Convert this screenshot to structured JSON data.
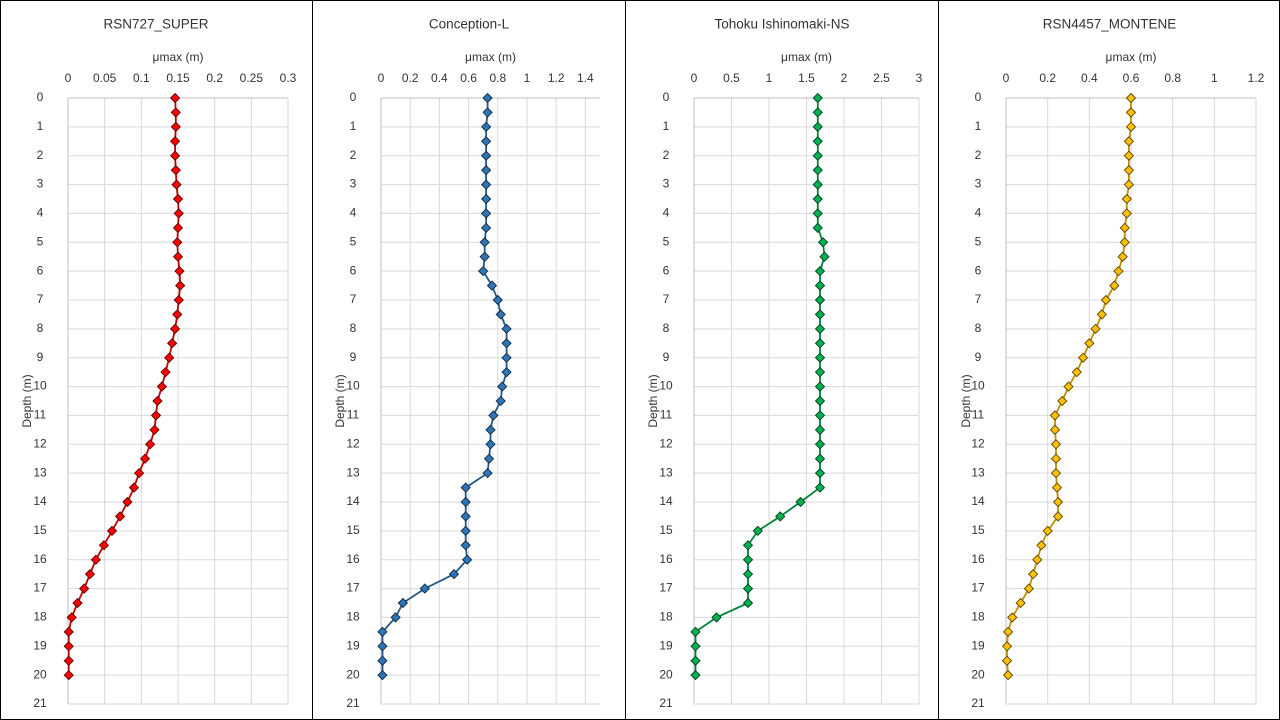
{
  "chart_data": [
    {
      "type": "line",
      "title": "RSN727_SUPER",
      "x_label": "μmax (m)",
      "y_label": "Depth (m)",
      "xlim": [
        0,
        0.3
      ],
      "xticks": [
        0,
        0.05,
        0.1,
        0.15,
        0.2,
        0.25,
        0.3
      ],
      "ylim": [
        0,
        21
      ],
      "yticks": [
        0,
        1,
        2,
        3,
        4,
        5,
        6,
        7,
        8,
        9,
        10,
        11,
        12,
        13,
        14,
        15,
        16,
        17,
        18,
        19,
        20,
        21
      ],
      "y_inverted": true,
      "x_axis_position": "top",
      "grid": true,
      "series": [
        {
          "color": "#ff0000",
          "x": [
            0.146,
            0.147,
            0.147,
            0.146,
            0.146,
            0.147,
            0.148,
            0.15,
            0.151,
            0.15,
            0.149,
            0.15,
            0.152,
            0.153,
            0.151,
            0.149,
            0.146,
            0.142,
            0.138,
            0.133,
            0.128,
            0.122,
            0.12,
            0.118,
            0.112,
            0.105,
            0.097,
            0.09,
            0.081,
            0.071,
            0.06,
            0.049,
            0.038,
            0.03,
            0.022,
            0.013,
            0.005,
            0.001,
            0.001,
            0.001,
            0.001
          ],
          "y": [
            0,
            0.5,
            1,
            1.5,
            2,
            2.5,
            3,
            3.5,
            4,
            4.5,
            5,
            5.5,
            6,
            6.5,
            7,
            7.5,
            8,
            8.5,
            9,
            9.5,
            10,
            10.5,
            11,
            11.5,
            12,
            12.5,
            13,
            13.5,
            14,
            14.5,
            15,
            15.5,
            16,
            16.5,
            17,
            17.5,
            18,
            18.5,
            19,
            19.5,
            20
          ]
        }
      ]
    },
    {
      "type": "line",
      "title": "Conception-L",
      "x_label": "μmax (m)",
      "y_label": "Depth (m)",
      "xlim": [
        0,
        1.5
      ],
      "xticks": [
        0,
        0.2,
        0.4,
        0.6,
        0.8,
        1,
        1.2,
        1.4
      ],
      "ylim": [
        0,
        21
      ],
      "yticks": [
        0,
        1,
        2,
        3,
        4,
        5,
        6,
        7,
        8,
        9,
        10,
        11,
        12,
        13,
        14,
        15,
        16,
        17,
        18,
        19,
        20,
        21
      ],
      "y_inverted": true,
      "x_axis_position": "top",
      "grid": true,
      "series": [
        {
          "color": "#2e75b6",
          "x": [
            0.73,
            0.73,
            0.72,
            0.72,
            0.72,
            0.72,
            0.72,
            0.72,
            0.72,
            0.72,
            0.71,
            0.71,
            0.7,
            0.76,
            0.8,
            0.82,
            0.86,
            0.86,
            0.86,
            0.86,
            0.83,
            0.82,
            0.77,
            0.75,
            0.75,
            0.74,
            0.73,
            0.58,
            0.58,
            0.58,
            0.58,
            0.58,
            0.59,
            0.5,
            0.3,
            0.15,
            0.1,
            0.01,
            0.01,
            0.01,
            0.01
          ],
          "y": [
            0,
            0.5,
            1,
            1.5,
            2,
            2.5,
            3,
            3.5,
            4,
            4.5,
            5,
            5.5,
            6,
            6.5,
            7,
            7.5,
            8,
            8.5,
            9,
            9.5,
            10,
            10.5,
            11,
            11.5,
            12,
            12.5,
            13,
            13.5,
            14,
            14.5,
            15,
            15.5,
            16,
            16.5,
            17,
            17.5,
            18,
            18.5,
            19,
            19.5,
            20
          ]
        }
      ]
    },
    {
      "type": "line",
      "title": "Tohoku Ishinomaki-NS",
      "x_label": "μmax (m)",
      "y_label": "Depth (m)",
      "xlim": [
        0,
        3
      ],
      "xticks": [
        0,
        0.5,
        1,
        1.5,
        2,
        2.5,
        3
      ],
      "ylim": [
        0,
        21
      ],
      "yticks": [
        0,
        1,
        2,
        3,
        4,
        5,
        6,
        7,
        8,
        9,
        10,
        11,
        12,
        13,
        14,
        15,
        16,
        17,
        18,
        19,
        20,
        21
      ],
      "y_inverted": true,
      "x_axis_position": "top",
      "grid": true,
      "series": [
        {
          "color": "#00b050",
          "x": [
            1.65,
            1.65,
            1.65,
            1.65,
            1.65,
            1.65,
            1.65,
            1.65,
            1.65,
            1.65,
            1.72,
            1.74,
            1.68,
            1.68,
            1.68,
            1.68,
            1.68,
            1.68,
            1.68,
            1.68,
            1.68,
            1.68,
            1.68,
            1.68,
            1.68,
            1.68,
            1.68,
            1.68,
            1.42,
            1.15,
            0.85,
            0.72,
            0.72,
            0.72,
            0.72,
            0.72,
            0.3,
            0.02,
            0.02,
            0.02,
            0.02
          ],
          "y": [
            0,
            0.5,
            1,
            1.5,
            2,
            2.5,
            3,
            3.5,
            4,
            4.5,
            5,
            5.5,
            6,
            6.5,
            7,
            7.5,
            8,
            8.5,
            9,
            9.5,
            10,
            10.5,
            11,
            11.5,
            12,
            12.5,
            13,
            13.5,
            14,
            14.5,
            15,
            15.5,
            16,
            16.5,
            17,
            17.5,
            18,
            18.5,
            19,
            19.5,
            20
          ]
        }
      ]
    },
    {
      "type": "line",
      "title": "RSN4457_MONTENE",
      "x_label": "μmax (m)",
      "y_label": "Depth (m)",
      "xlim": [
        0,
        1.2
      ],
      "xticks": [
        0,
        0.2,
        0.4,
        0.6,
        0.8,
        1,
        1.2
      ],
      "ylim": [
        0,
        21
      ],
      "yticks": [
        0,
        1,
        2,
        3,
        4,
        5,
        6,
        7,
        8,
        9,
        10,
        11,
        12,
        13,
        14,
        15,
        16,
        17,
        18,
        19,
        20,
        21
      ],
      "y_inverted": true,
      "x_axis_position": "top",
      "grid": true,
      "series": [
        {
          "color": "#ffc000",
          "x": [
            0.6,
            0.6,
            0.6,
            0.59,
            0.59,
            0.59,
            0.59,
            0.58,
            0.58,
            0.57,
            0.57,
            0.56,
            0.54,
            0.52,
            0.48,
            0.46,
            0.43,
            0.4,
            0.37,
            0.34,
            0.3,
            0.27,
            0.235,
            0.235,
            0.24,
            0.24,
            0.24,
            0.245,
            0.25,
            0.25,
            0.2,
            0.17,
            0.15,
            0.13,
            0.11,
            0.07,
            0.03,
            0.01,
            0.005,
            0.005,
            0.01
          ],
          "y": [
            0,
            0.5,
            1,
            1.5,
            2,
            2.5,
            3,
            3.5,
            4,
            4.5,
            5,
            5.5,
            6,
            6.5,
            7,
            7.5,
            8,
            8.5,
            9,
            9.5,
            10,
            10.5,
            11,
            11.5,
            12,
            12.5,
            13,
            13.5,
            14,
            14.5,
            15,
            15.5,
            16,
            16.5,
            17,
            17.5,
            18,
            18.5,
            19,
            19.5,
            20
          ]
        }
      ]
    }
  ]
}
